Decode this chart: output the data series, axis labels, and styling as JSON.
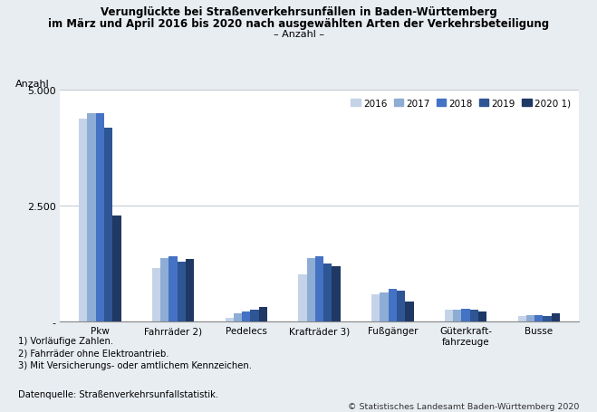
{
  "title_line1": "Verunglückte bei Straßenverkehrsunfällen in Baden-Württemberg",
  "title_line2": "im März und April 2016 bis 2020 nach ausgewählten Arten der Verkehrsbeteiligung",
  "subtitle": "– Anzahl –",
  "ylabel_text": "Anzahl",
  "categories": [
    "Pkw",
    "Fahrräder 2)",
    "Pedelecs",
    "Krafträder 3)",
    "Fußgänger",
    "Güterkraft-\nfahrzeuge",
    "Busse"
  ],
  "years": [
    "2016",
    "2017",
    "2018",
    "2019",
    "2020 1)"
  ],
  "values": {
    "Pkw": [
      4380,
      4490,
      4490,
      4180,
      2280
    ],
    "Fahrräder 2)": [
      1150,
      1370,
      1400,
      1290,
      1340
    ],
    "Pedelecs": [
      80,
      175,
      215,
      250,
      310
    ],
    "Krafträder 3)": [
      1020,
      1360,
      1410,
      1240,
      1180
    ],
    "Fußgänger": [
      580,
      630,
      700,
      650,
      430
    ],
    "Güterkraft-\nfahrzeuge": [
      245,
      255,
      265,
      255,
      210
    ],
    "Busse": [
      115,
      125,
      135,
      110,
      175
    ]
  },
  "colors": [
    "#c5d3e8",
    "#8dadd4",
    "#4472c4",
    "#2e5594",
    "#1f3864"
  ],
  "ylim": [
    0,
    5000
  ],
  "yticks": [
    0,
    2500,
    5000
  ],
  "ytick_labels": [
    "-",
    "2.500",
    "5.000"
  ],
  "footnote1": "1) Vorläufige Zahlen.",
  "footnote2": "2) Fahrräder ohne Elektroantrieb.",
  "footnote3": "3) Mit Versicherungs- oder amtlichem Kennzeichen.",
  "datasource": "Datenquelle: Straßenverkehrsunfallstatistik.",
  "copyright": "© Statistisches Landesamt Baden-Württemberg 2020",
  "bg_color": "#e8edf2",
  "plot_bg_color": "#ffffff",
  "grid_color": "#c0c8d0"
}
